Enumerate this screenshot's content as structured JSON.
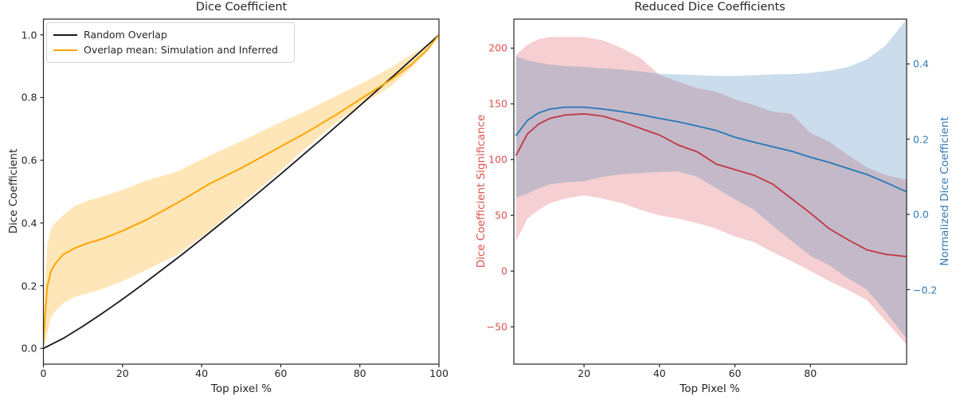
{
  "figure": {
    "background": "#ffffff",
    "spine_color": "#262626",
    "tick_text_color": "#262626"
  },
  "chart_data": [
    {
      "type": "line",
      "title": "Dice Coefficient",
      "xlabel": "Top pixel %",
      "ylabel": "Dice Coefficient",
      "xlim": [
        0,
        100
      ],
      "ylim": [
        -0.05,
        1.05
      ],
      "grid": false,
      "legend_position": "upper left",
      "xticks": [
        {
          "v": 0,
          "label": "0"
        },
        {
          "v": 20,
          "label": "20"
        },
        {
          "v": 40,
          "label": "40"
        },
        {
          "v": 60,
          "label": "60"
        },
        {
          "v": 80,
          "label": "80"
        },
        {
          "v": 100,
          "label": "100"
        }
      ],
      "yticks": [
        {
          "v": 0.0,
          "label": "0.0"
        },
        {
          "v": 0.2,
          "label": "0.2"
        },
        {
          "v": 0.4,
          "label": "0.4"
        },
        {
          "v": 0.6,
          "label": "0.6"
        },
        {
          "v": 0.8,
          "label": "0.8"
        },
        {
          "v": 1.0,
          "label": "1.0"
        }
      ],
      "legend": [
        {
          "label": "Random Overlap",
          "color": "#1a1a1a"
        },
        {
          "label": "Overlap mean: Simulation and Inferred",
          "color": "#ffa500"
        }
      ],
      "bands": [
        {
          "name": "overlap-std-band",
          "color": "rgba(255,165,0,0.28)",
          "x": [
            0,
            0.5,
            1,
            2,
            3,
            5,
            8,
            11,
            15,
            20,
            26,
            34,
            42,
            50,
            58,
            66,
            74,
            82,
            88,
            93,
            97,
            100
          ],
          "upper": [
            0.04,
            0.22,
            0.33,
            0.385,
            0.4,
            0.425,
            0.455,
            0.47,
            0.485,
            0.505,
            0.535,
            0.565,
            0.615,
            0.66,
            0.71,
            0.755,
            0.805,
            0.855,
            0.897,
            0.937,
            0.968,
            1.0
          ],
          "lower": [
            0.0,
            0.02,
            0.05,
            0.1,
            0.12,
            0.145,
            0.165,
            0.175,
            0.19,
            0.215,
            0.25,
            0.3,
            0.375,
            0.46,
            0.545,
            0.635,
            0.72,
            0.79,
            0.838,
            0.894,
            0.945,
            1.0
          ]
        }
      ],
      "series": [
        {
          "name": "Random Overlap",
          "color": "#1a1a1a",
          "width": 1.8,
          "x": [
            0,
            5,
            10,
            15,
            20,
            25,
            30,
            35,
            40,
            45,
            50,
            55,
            60,
            65,
            70,
            75,
            80,
            85,
            90,
            95,
            100
          ],
          "y": [
            0.0,
            0.032,
            0.071,
            0.113,
            0.157,
            0.203,
            0.251,
            0.299,
            0.349,
            0.4,
            0.451,
            0.503,
            0.556,
            0.61,
            0.664,
            0.719,
            0.774,
            0.83,
            0.886,
            0.943,
            1.0
          ]
        },
        {
          "name": "Overlap mean: Simulation and Inferred",
          "color": "#ffa500",
          "width": 2.0,
          "x": [
            0,
            0.5,
            1,
            2,
            3,
            5,
            8,
            11,
            15,
            20,
            26,
            34,
            42,
            50,
            58,
            66,
            74,
            82,
            88,
            93,
            97,
            100
          ],
          "y": [
            0.02,
            0.12,
            0.2,
            0.25,
            0.27,
            0.3,
            0.32,
            0.335,
            0.35,
            0.375,
            0.41,
            0.465,
            0.525,
            0.575,
            0.63,
            0.685,
            0.745,
            0.81,
            0.858,
            0.905,
            0.952,
            1.0
          ]
        }
      ]
    },
    {
      "type": "line",
      "title": "Reduced Dice Coefficients",
      "xlabel": "Top Pixel %",
      "ylabel_left": "Dice Coefficient Significance",
      "ylabel_right": "Normalized Dice Coefficient",
      "axis_left_color": "#d9534f",
      "axis_right_color": "#3579b5",
      "xlim": [
        1.4,
        105.5
      ],
      "ylim_left": [
        -83.5,
        226
      ],
      "ylim_right": [
        -0.398,
        0.519
      ],
      "grid": false,
      "xticks": [
        {
          "v": 20,
          "label": "20"
        },
        {
          "v": 40,
          "label": "40"
        },
        {
          "v": 60,
          "label": "60"
        },
        {
          "v": 80,
          "label": "80"
        }
      ],
      "yticks_left": [
        {
          "v": -50,
          "label": "−50"
        },
        {
          "v": 0,
          "label": "0"
        },
        {
          "v": 50,
          "label": "50"
        },
        {
          "v": 100,
          "label": "100"
        },
        {
          "v": 150,
          "label": "150"
        },
        {
          "v": 200,
          "label": "200"
        }
      ],
      "yticks_right": [
        {
          "v": -0.2,
          "label": "−0.2"
        },
        {
          "v": 0.0,
          "label": "0.0"
        },
        {
          "v": 0.2,
          "label": "0.2"
        },
        {
          "v": 0.4,
          "label": "0.4"
        }
      ],
      "x_shared": [
        2,
        5,
        8,
        11,
        15,
        20,
        25,
        30,
        35,
        40,
        45,
        50,
        55,
        60,
        65,
        70,
        75,
        80,
        85,
        90,
        95,
        100,
        105.5
      ],
      "bands": [
        {
          "name": "significance-std-band",
          "axis": "left",
          "color": "rgba(217,65,73,0.25)",
          "upper": [
            194,
            203,
            208,
            210,
            210,
            210,
            207,
            200,
            191,
            176,
            170,
            164,
            161,
            154,
            149,
            143,
            141,
            124,
            116,
            104,
            93,
            86,
            82
          ],
          "lower": [
            27,
            47,
            55,
            61,
            65,
            68,
            65,
            61,
            55,
            50,
            47,
            43,
            38,
            31,
            26,
            17,
            9,
            0,
            -9,
            -17,
            -26,
            -45,
            -66
          ]
        },
        {
          "name": "normalized-dice-std-band",
          "axis": "right",
          "color": "rgba(49,118,180,0.25)",
          "upper": [
            0.42,
            0.41,
            0.403,
            0.398,
            0.394,
            0.392,
            0.388,
            0.385,
            0.38,
            0.374,
            0.372,
            0.37,
            0.368,
            0.368,
            0.37,
            0.372,
            0.373,
            0.376,
            0.382,
            0.392,
            0.412,
            0.45,
            0.519
          ],
          "lower": [
            0.045,
            0.055,
            0.07,
            0.08,
            0.085,
            0.088,
            0.1,
            0.107,
            0.11,
            0.113,
            0.114,
            0.1,
            0.07,
            0.04,
            0.013,
            -0.03,
            -0.07,
            -0.11,
            -0.135,
            -0.17,
            -0.2,
            -0.26,
            -0.33
          ]
        }
      ],
      "series": [
        {
          "name": "Dice Coefficient Significance",
          "axis": "left",
          "color": "#c23742",
          "width": 1.8,
          "y": [
            104,
            123,
            132,
            137,
            140,
            141,
            139,
            134,
            128,
            122,
            113,
            107,
            96,
            91,
            86,
            78,
            65,
            52,
            38,
            28,
            19,
            15,
            13
          ]
        },
        {
          "name": "Normalized Dice Coefficient",
          "axis": "right",
          "color": "#2878b5",
          "width": 1.8,
          "y": [
            0.21,
            0.25,
            0.27,
            0.28,
            0.285,
            0.285,
            0.28,
            0.273,
            0.265,
            0.255,
            0.246,
            0.235,
            0.223,
            0.205,
            0.192,
            0.18,
            0.168,
            0.152,
            0.138,
            0.122,
            0.106,
            0.085,
            0.06
          ]
        }
      ]
    }
  ]
}
